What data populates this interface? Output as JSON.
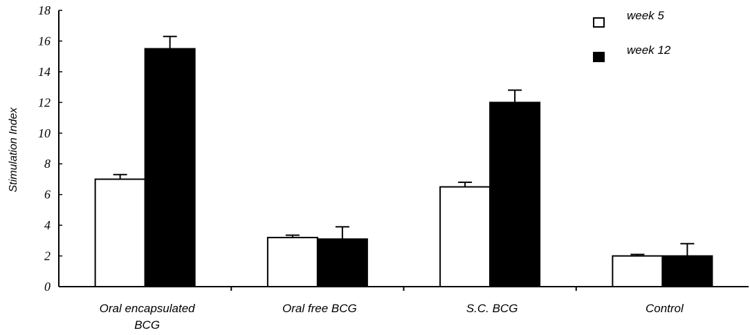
{
  "chart_data": {
    "type": "bar",
    "title": "",
    "xlabel": "",
    "ylabel": "Stimulation Index",
    "ylim": [
      0,
      18
    ],
    "yticks": [
      0,
      2,
      4,
      6,
      8,
      10,
      12,
      14,
      16,
      18
    ],
    "categories": [
      [
        "Oral encapsulated",
        "BCG"
      ],
      [
        "Oral free BCG"
      ],
      [
        "S.C. BCG"
      ],
      [
        "Control"
      ]
    ],
    "series": [
      {
        "name": "week 5",
        "fill": "#ffffff",
        "values": [
          7.0,
          3.2,
          6.5,
          2.0
        ],
        "errors": [
          0.3,
          0.15,
          0.3,
          0.1
        ]
      },
      {
        "name": "week 12",
        "fill": "#000000",
        "values": [
          15.5,
          3.1,
          12.0,
          2.0
        ],
        "errors": [
          0.8,
          0.8,
          0.8,
          0.8
        ]
      }
    ],
    "legend_position": "top-right",
    "grid": false
  }
}
